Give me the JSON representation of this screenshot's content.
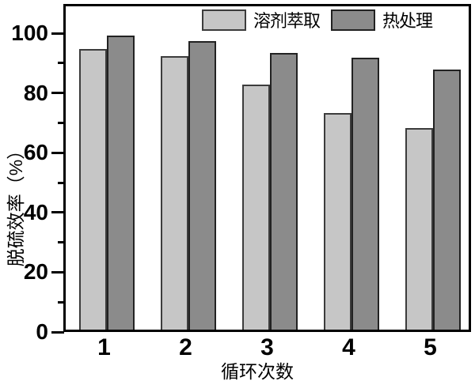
{
  "chart_data": {
    "type": "bar",
    "title": "",
    "categories": [
      "1",
      "2",
      "3",
      "4",
      "5"
    ],
    "series": [
      {
        "name": "溶剂萃取",
        "color": "#c6c6c6",
        "border_color": "#3c3c3c",
        "values": [
          94,
          91.5,
          82,
          72.5,
          67.5
        ]
      },
      {
        "name": "热处理",
        "color": "#8b8b8b",
        "border_color": "#222222",
        "values": [
          98.5,
          96.5,
          92.5,
          91,
          87
        ]
      }
    ],
    "xlabel": "循环次数",
    "ylabel": "脱硫效率（%）",
    "ylim": [
      0,
      110
    ],
    "yticks": [
      0,
      20,
      40,
      60,
      80,
      100
    ],
    "yminorticks": [
      10,
      30,
      50,
      70,
      90
    ],
    "grid": false,
    "legend_position": "top-inside",
    "frame_color": "#000000",
    "background_color": "#ffffff"
  }
}
